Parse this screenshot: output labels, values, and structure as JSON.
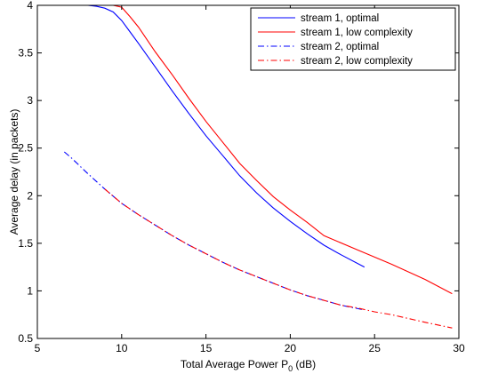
{
  "chart_data": {
    "type": "line",
    "title": "",
    "xlabel": "Total Average Power P",
    "xlabel_subscript": "0",
    "xlabel_suffix": " (dB)",
    "ylabel": "Average delay (in packets)",
    "xlim": [
      5,
      30
    ],
    "ylim": [
      0.5,
      4
    ],
    "xticks": [
      5,
      10,
      15,
      20,
      25,
      30
    ],
    "yticks": [
      0.5,
      1,
      1.5,
      2,
      2.5,
      3,
      3.5,
      4
    ],
    "xtick_labels": [
      "5",
      "10",
      "15",
      "20",
      "25",
      "30"
    ],
    "ytick_labels": [
      "0.5",
      "1",
      "1.5",
      "2",
      "2.5",
      "3",
      "3.5",
      "4"
    ],
    "grid": false,
    "legend_position": "top-right",
    "series": [
      {
        "name": "stream 1, optimal",
        "color": "#0000ff",
        "dash": "solid",
        "x": [
          5.0,
          6.0,
          7.0,
          8.0,
          8.5,
          9.0,
          9.5,
          10.0,
          10.5,
          11.0,
          12.0,
          13.0,
          14.0,
          15.0,
          16.0,
          17.0,
          18.0,
          19.0,
          20.0,
          21.0,
          22.0,
          23.0,
          24.4
        ],
        "y": [
          4.0,
          4.0,
          4.0,
          4.0,
          3.99,
          3.97,
          3.93,
          3.84,
          3.72,
          3.6,
          3.35,
          3.1,
          2.86,
          2.63,
          2.42,
          2.21,
          2.03,
          1.87,
          1.73,
          1.6,
          1.48,
          1.38,
          1.25
        ]
      },
      {
        "name": "stream 1, low complexity",
        "color": "#ff0000",
        "dash": "solid",
        "x": [
          5.0,
          6.0,
          7.0,
          8.0,
          9.0,
          9.5,
          10.0,
          10.5,
          11.0,
          12.0,
          13.0,
          14.0,
          15.0,
          16.0,
          17.0,
          18.0,
          19.0,
          20.0,
          21.0,
          22.0,
          24.0,
          26.0,
          28.0,
          29.6
        ],
        "y": [
          4.0,
          4.0,
          4.0,
          4.0,
          4.0,
          4.0,
          3.98,
          3.88,
          3.77,
          3.51,
          3.27,
          3.02,
          2.78,
          2.56,
          2.34,
          2.16,
          1.99,
          1.85,
          1.72,
          1.58,
          1.43,
          1.28,
          1.12,
          0.97
        ]
      },
      {
        "name": "stream 2, optimal",
        "color": "#0000ff",
        "dash": "dashdot",
        "x": [
          6.6,
          7.0,
          8.0,
          9.0,
          10.0,
          11.0,
          12.0,
          13.0,
          14.0,
          15.0,
          16.0,
          17.0,
          18.0,
          19.0,
          20.0,
          21.0,
          22.0,
          23.0,
          24.4
        ],
        "y": [
          2.46,
          2.4,
          2.23,
          2.07,
          1.92,
          1.8,
          1.69,
          1.58,
          1.48,
          1.39,
          1.3,
          1.22,
          1.15,
          1.08,
          1.01,
          0.95,
          0.9,
          0.85,
          0.8
        ]
      },
      {
        "name": "stream 2, low complexity",
        "color": "#ff0000",
        "dash": "dashdot",
        "x": [
          9.0,
          10.0,
          11.0,
          12.0,
          13.0,
          14.0,
          15.0,
          16.0,
          17.0,
          18.0,
          19.0,
          20.0,
          21.0,
          22.0,
          23.0,
          24.0,
          25.0,
          26.0,
          27.0,
          28.0,
          29.6
        ],
        "y": [
          2.07,
          1.92,
          1.8,
          1.69,
          1.58,
          1.48,
          1.39,
          1.3,
          1.22,
          1.15,
          1.08,
          1.01,
          0.95,
          0.9,
          0.85,
          0.82,
          0.78,
          0.75,
          0.71,
          0.67,
          0.61
        ]
      }
    ]
  }
}
